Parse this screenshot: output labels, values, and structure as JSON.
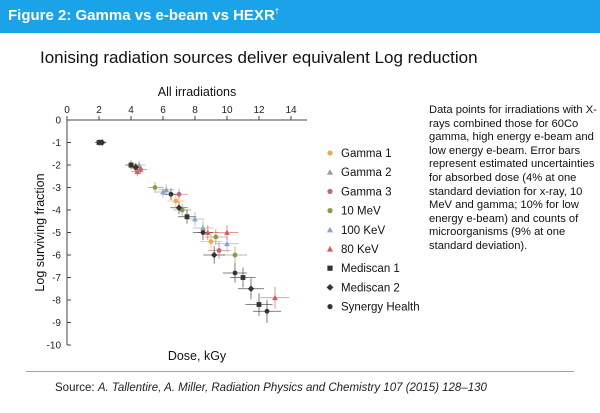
{
  "figure": {
    "title": "Figure 2: Gamma vs e-beam vs HEXR",
    "title_footnote": "†",
    "header_color": "#1aa3e8"
  },
  "heading": "Ionising radiation sources deliver equivalent Log reduction",
  "note": "Data points for irradiations with X-rays combined those for 60Co gamma, high energy e-beam and low energy e-beam. Error bars represent estimated uncertainties for absorbed dose (4% at one standard deviation for x-ray, 10 MeV and gamma; 10% for low energy e-beam) and counts of microorganisms (9% at one standard deviation).",
  "source": {
    "prefix": "Source: ",
    "citation": "A. Tallentire, A. Miller, Radiation Physics and Chemistry 107 (2015) 128–130"
  },
  "chart_data": {
    "type": "scatter",
    "title": "All irradiations",
    "xlabel": "Dose, kGy",
    "ylabel": "Log surviving fraction",
    "xlim": [
      0,
      15
    ],
    "ylim": [
      -10,
      0
    ],
    "x_ticks": [
      0,
      2,
      4,
      6,
      8,
      10,
      12,
      14
    ],
    "y_ticks": [
      0,
      -1,
      -2,
      -3,
      -4,
      -5,
      -6,
      -7,
      -8,
      -9,
      -10
    ],
    "x_axis_position": "top",
    "grid": false,
    "legend_position": "right",
    "series": [
      {
        "name": "Gamma 1",
        "color": "#f0a94a",
        "marker": "circle",
        "points": [
          {
            "x": 2.0,
            "y": -1.0
          },
          {
            "x": 4.2,
            "y": -2.1
          },
          {
            "x": 6.8,
            "y": -3.6
          },
          {
            "x": 9.0,
            "y": -5.4
          }
        ]
      },
      {
        "name": "Gamma 2",
        "color": "#9aa0a6",
        "marker": "triangle",
        "points": [
          {
            "x": 2.1,
            "y": -1.0
          },
          {
            "x": 4.5,
            "y": -2.0
          },
          {
            "x": 6.2,
            "y": -3.1
          },
          {
            "x": 8.5,
            "y": -4.8
          }
        ]
      },
      {
        "name": "Gamma 3",
        "color": "#c0687a",
        "marker": "circle",
        "points": [
          {
            "x": 4.6,
            "y": -2.2
          },
          {
            "x": 7.0,
            "y": -3.3
          },
          {
            "x": 9.5,
            "y": -5.8
          }
        ]
      },
      {
        "name": "10 MeV",
        "color": "#8a9a4a",
        "marker": "circle",
        "points": [
          {
            "x": 5.5,
            "y": -3.0
          },
          {
            "x": 7.2,
            "y": -4.0
          },
          {
            "x": 9.3,
            "y": -5.2
          },
          {
            "x": 10.5,
            "y": -6.0
          }
        ]
      },
      {
        "name": "100 KeV",
        "color": "#8aa6cc",
        "marker": "triangle",
        "points": [
          {
            "x": 6.0,
            "y": -3.2
          },
          {
            "x": 8.0,
            "y": -4.4
          },
          {
            "x": 10.0,
            "y": -5.5
          }
        ]
      },
      {
        "name": "80 KeV",
        "color": "#d85a5a",
        "marker": "triangle",
        "points": [
          {
            "x": 4.4,
            "y": -2.3
          },
          {
            "x": 8.8,
            "y": -5.0
          },
          {
            "x": 10.0,
            "y": -5.0
          },
          {
            "x": 13.0,
            "y": -7.9
          }
        ]
      },
      {
        "name": "Mediscan 1",
        "color": "#333333",
        "marker": "square",
        "points": [
          {
            "x": 2.0,
            "y": -1.0
          },
          {
            "x": 4.0,
            "y": -2.0
          },
          {
            "x": 7.5,
            "y": -4.3
          },
          {
            "x": 11.0,
            "y": -7.0
          },
          {
            "x": 12.0,
            "y": -8.2
          }
        ]
      },
      {
        "name": "Mediscan 2",
        "color": "#333333",
        "marker": "diamond",
        "points": [
          {
            "x": 2.2,
            "y": -1.0
          },
          {
            "x": 4.3,
            "y": -2.1
          },
          {
            "x": 7.0,
            "y": -3.9
          },
          {
            "x": 9.2,
            "y": -6.0
          },
          {
            "x": 11.5,
            "y": -7.5
          }
        ]
      },
      {
        "name": "Synergy Health",
        "color": "#333333",
        "marker": "circle",
        "points": [
          {
            "x": 6.5,
            "y": -3.3
          },
          {
            "x": 8.5,
            "y": -5.0
          },
          {
            "x": 10.5,
            "y": -6.8
          },
          {
            "x": 12.5,
            "y": -8.5
          }
        ]
      }
    ]
  }
}
